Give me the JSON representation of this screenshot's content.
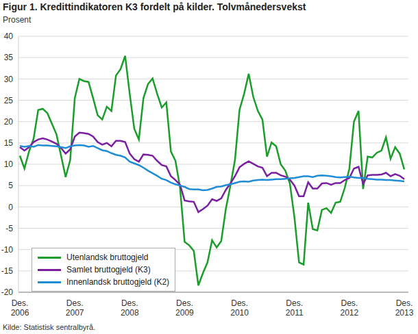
{
  "chart_data": {
    "type": "line",
    "title": "Figur 1. Kredittindikatoren K3 fordelt på kilder. Tolvmånedersvekst",
    "y_label": "Prosent",
    "source": "Kilde: Statistisk sentralbyrå.",
    "categories": [
      "Des. 2006",
      null,
      null,
      null,
      null,
      null,
      null,
      null,
      null,
      null,
      null,
      null,
      "Des. 2007",
      null,
      null,
      null,
      null,
      null,
      null,
      null,
      null,
      null,
      null,
      null,
      "Des. 2008",
      null,
      null,
      null,
      null,
      null,
      null,
      null,
      null,
      null,
      null,
      null,
      "Des. 2009",
      null,
      null,
      null,
      null,
      null,
      null,
      null,
      null,
      null,
      null,
      null,
      "Des. 2010",
      null,
      null,
      null,
      null,
      null,
      null,
      null,
      null,
      null,
      null,
      null,
      "Des. 2011",
      null,
      null,
      null,
      null,
      null,
      null,
      null,
      null,
      null,
      null,
      null,
      "Des. 2012",
      null,
      null,
      null,
      null,
      null,
      null,
      null,
      null,
      null,
      null,
      null,
      "Des. 2013"
    ],
    "series": [
      {
        "name": "Utenlandsk bruttogjeld",
        "color": "#1a9d2a",
        "values": [
          12,
          9,
          13,
          16,
          22.7,
          23,
          22,
          19.5,
          17,
          12,
          7,
          11,
          25.5,
          30,
          29.5,
          29.3,
          25.5,
          21.5,
          20.5,
          23.5,
          22.5,
          30.8,
          32.3,
          35.4,
          26.5,
          18.3,
          15.8,
          25.5,
          28.8,
          30.1,
          26.5,
          23.3,
          24.5,
          13,
          10.8,
          4.5,
          -8.2,
          -9,
          -10.3,
          -18.4,
          -15.5,
          -13,
          -7.8,
          -9.5,
          -8,
          -0.5,
          5,
          11,
          22.8,
          26.5,
          31.2,
          25.8,
          22.5,
          20.5,
          11.8,
          15.1,
          14.2,
          10,
          8.5,
          5.5,
          -2.5,
          -13,
          -13.5,
          1,
          -5.2,
          -5.5,
          -0.7,
          -0.3,
          -1.4,
          1,
          1.2,
          4.5,
          9,
          20,
          22.5,
          4.2,
          11.8,
          11.6,
          12.7,
          13.2,
          16.3,
          11.3,
          14,
          12.5,
          8.8
        ]
      },
      {
        "name": "Samlet bruttogjeld (K3)",
        "color": "#7b1fa2",
        "values": [
          14,
          13.2,
          14,
          15.2,
          15.8,
          16.1,
          15.8,
          15.3,
          14.8,
          13.8,
          12.5,
          13.5,
          16.5,
          17.4,
          17.3,
          17.1,
          16.5,
          15.2,
          14.6,
          15,
          14.2,
          15.5,
          15.5,
          15.2,
          12.5,
          11.2,
          10.6,
          12.3,
          12.2,
          12,
          10.8,
          9.8,
          9.5,
          7.2,
          6.3,
          5.2,
          1.5,
          1.3,
          1.2,
          -1.2,
          -0.5,
          0.3,
          1.8,
          1.4,
          2,
          4,
          5.5,
          7.2,
          9.3,
          10.1,
          10.7,
          10.1,
          9.5,
          9.2,
          7.2,
          8,
          8,
          7.4,
          7.1,
          6.4,
          5,
          2.5,
          2.5,
          5.8,
          4.3,
          4.3,
          5.5,
          5.6,
          5.2,
          5.6,
          5.6,
          6.3,
          6.8,
          9,
          9.4,
          5.4,
          7.4,
          7.5,
          7.5,
          7.6,
          8,
          7.2,
          7.7,
          7.3,
          6.5
        ]
      },
      {
        "name": "Innenlandsk bruttogjeld (K2)",
        "color": "#1f8dd6",
        "values": [
          14.3,
          14.1,
          14.3,
          14.1,
          14.5,
          14.4,
          14.4,
          14.3,
          14.2,
          14,
          13.8,
          14.2,
          14.4,
          14.5,
          14.4,
          14.1,
          14.3,
          13.8,
          13.3,
          13.1,
          12.6,
          12.2,
          12,
          11.6,
          10.6,
          10.2,
          9.8,
          9.2,
          8.5,
          7.9,
          7.3,
          6.6,
          6.3,
          5.7,
          5.3,
          5,
          4.7,
          4.2,
          4.1,
          4.1,
          3.9,
          4,
          4.3,
          4.7,
          4.8,
          5.1,
          5.3,
          5.6,
          5.9,
          6,
          5.9,
          6.2,
          6.3,
          6.4,
          6.3,
          6.4,
          6.5,
          6.5,
          6.6,
          6.7,
          6.8,
          7,
          7.2,
          7.2,
          7,
          7.3,
          7.4,
          7.3,
          7.2,
          7,
          6.9,
          7,
          7.1,
          6.9,
          6.8,
          6.8,
          6.6,
          6.5,
          6.4,
          6.4,
          6.3,
          6.3,
          6.2,
          6.1,
          6
        ]
      }
    ],
    "ylim": [
      -20,
      40
    ],
    "yticks": [
      -20,
      -15,
      -10,
      -5,
      0,
      5,
      10,
      15,
      20,
      25,
      30,
      35,
      40
    ],
    "grid": true,
    "legend": "lower left"
  }
}
